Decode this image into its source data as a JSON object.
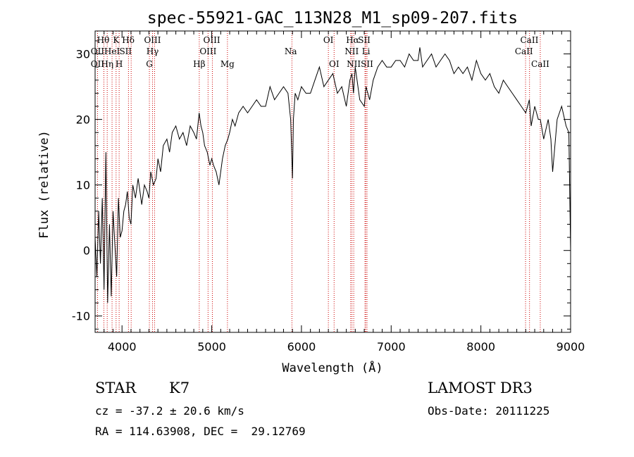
{
  "chart_data": {
    "type": "line",
    "title": "spec-55921-GAC_113N28_M1_sp09-207.fits",
    "xlabel": "Wavelength (Å)",
    "ylabel": "Flux (relative)",
    "xlim": [
      3700,
      9000
    ],
    "ylim": [
      -12.5,
      33.5
    ],
    "x_ticks": [
      4000,
      5000,
      6000,
      7000,
      8000,
      9000
    ],
    "y_ticks": [
      -10,
      0,
      10,
      20,
      30
    ],
    "line_color": "#000000",
    "marker_color": "#cc0000",
    "series": [
      {
        "name": "flux",
        "x": [
          3700,
          3720,
          3740,
          3760,
          3780,
          3800,
          3820,
          3840,
          3860,
          3880,
          3900,
          3920,
          3940,
          3960,
          3980,
          4000,
          4020,
          4040,
          4060,
          4080,
          4100,
          4120,
          4150,
          4180,
          4200,
          4220,
          4250,
          4280,
          4300,
          4320,
          4350,
          4380,
          4400,
          4430,
          4460,
          4500,
          4530,
          4560,
          4600,
          4640,
          4680,
          4720,
          4760,
          4800,
          4830,
          4860,
          4880,
          4900,
          4920,
          4950,
          4980,
          5000,
          5020,
          5050,
          5080,
          5120,
          5150,
          5180,
          5200,
          5230,
          5260,
          5300,
          5350,
          5400,
          5450,
          5500,
          5550,
          5600,
          5650,
          5700,
          5750,
          5800,
          5850,
          5880,
          5900,
          5910,
          5930,
          5960,
          6000,
          6050,
          6100,
          6150,
          6200,
          6250,
          6300,
          6350,
          6400,
          6450,
          6500,
          6540,
          6563,
          6580,
          6600,
          6650,
          6700,
          6720,
          6760,
          6800,
          6850,
          6900,
          6950,
          7000,
          7050,
          7100,
          7150,
          7200,
          7250,
          7300,
          7320,
          7350,
          7400,
          7450,
          7500,
          7550,
          7600,
          7650,
          7700,
          7750,
          7800,
          7850,
          7900,
          7950,
          8000,
          8050,
          8100,
          8150,
          8200,
          8250,
          8300,
          8350,
          8400,
          8450,
          8500,
          8540,
          8560,
          8600,
          8640,
          8662,
          8700,
          8750,
          8780,
          8800,
          8850,
          8900,
          8950,
          8980,
          9000
        ],
        "values": [
          2,
          -4,
          6,
          -2,
          8,
          -6,
          15,
          -8,
          4,
          -7,
          6,
          1,
          -4,
          8,
          2,
          3,
          6,
          7,
          9,
          5,
          4,
          10,
          8,
          11,
          9,
          7,
          10,
          9,
          8,
          12,
          10,
          11,
          14,
          12,
          16,
          17,
          15,
          18,
          19,
          17,
          18,
          16,
          19,
          18,
          17,
          21,
          19,
          18,
          16,
          15,
          13,
          14,
          13,
          12,
          10,
          14,
          16,
          17,
          18,
          20,
          19,
          21,
          22,
          21,
          22,
          23,
          22,
          22,
          25,
          23,
          24,
          25,
          24,
          20,
          11,
          20,
          24,
          23,
          25,
          24,
          24,
          26,
          28,
          25,
          26,
          27,
          24,
          25,
          22,
          26,
          27,
          24,
          28,
          23,
          22,
          25,
          23,
          26,
          28,
          29,
          28,
          28,
          29,
          29,
          28,
          30,
          29,
          29,
          31,
          28,
          29,
          30,
          28,
          29,
          30,
          29,
          27,
          28,
          27,
          28,
          26,
          29,
          27,
          26,
          27,
          25,
          24,
          26,
          25,
          24,
          23,
          22,
          21,
          23,
          19,
          22,
          20,
          20,
          17,
          20,
          17,
          12,
          20,
          22,
          19,
          18,
          0
        ]
      }
    ],
    "lines": [
      {
        "name": "Hθ",
        "x": 3798
      },
      {
        "name": "OII",
        "x": 3727
      },
      {
        "name": "Hη",
        "x": 3835
      },
      {
        "name": "K",
        "x": 3934
      },
      {
        "name": "HeI",
        "x": 3889
      },
      {
        "name": "H",
        "x": 3968
      },
      {
        "name": "Hδ",
        "x": 4102
      },
      {
        "name": "SII",
        "x": 4072
      },
      {
        "name": "OIII",
        "x": 4363
      },
      {
        "name": "Hγ",
        "x": 4340
      },
      {
        "name": "G",
        "x": 4305
      },
      {
        "name": "Hβ",
        "x": 4861
      },
      {
        "name": "OIII",
        "x": 4959
      },
      {
        "name": "OIII",
        "x": 5007
      },
      {
        "name": "Mg",
        "x": 5175
      },
      {
        "name": "Na",
        "x": 5894
      },
      {
        "name": "OI",
        "x": 6300
      },
      {
        "name": "OI",
        "x": 6364
      },
      {
        "name": "Hα",
        "x": 6563
      },
      {
        "name": "NII",
        "x": 6548
      },
      {
        "name": "NII",
        "x": 6583
      },
      {
        "name": "SII",
        "x": 6717
      },
      {
        "name": "SII",
        "x": 6731
      },
      {
        "name": "Li",
        "x": 6708
      },
      {
        "name": "CaII",
        "x": 8498
      },
      {
        "name": "CaII",
        "x": 8542
      },
      {
        "name": "CaII",
        "x": 8662
      }
    ],
    "labels": [
      {
        "text": "Hθ",
        "x": 3790,
        "row": 0
      },
      {
        "text": "K",
        "x": 3934,
        "row": 0
      },
      {
        "text": "Hδ",
        "x": 4070,
        "row": 0
      },
      {
        "text": "OIII",
        "x": 4340,
        "row": 0
      },
      {
        "text": "OIII",
        "x": 5000,
        "row": 0
      },
      {
        "text": "OI",
        "x": 6300,
        "row": 0
      },
      {
        "text": "Hα",
        "x": 6570,
        "row": 0
      },
      {
        "text": "SII",
        "x": 6700,
        "row": 0
      },
      {
        "text": "CaII",
        "x": 8540,
        "row": 0
      },
      {
        "text": "OII",
        "x": 3727,
        "row": 1
      },
      {
        "text": "HeI",
        "x": 3889,
        "row": 1
      },
      {
        "text": "SII",
        "x": 4040,
        "row": 1
      },
      {
        "text": "Hγ",
        "x": 4340,
        "row": 1
      },
      {
        "text": "OIII",
        "x": 4959,
        "row": 1
      },
      {
        "text": "Na",
        "x": 5880,
        "row": 1
      },
      {
        "text": "NII",
        "x": 6560,
        "row": 1
      },
      {
        "text": "Li",
        "x": 6720,
        "row": 1
      },
      {
        "text": "CaII",
        "x": 8480,
        "row": 1
      },
      {
        "text": "OII",
        "x": 3727,
        "row": 2
      },
      {
        "text": "Hη",
        "x": 3835,
        "row": 2
      },
      {
        "text": "H",
        "x": 3968,
        "row": 2
      },
      {
        "text": "G",
        "x": 4305,
        "row": 2
      },
      {
        "text": "Hβ",
        "x": 4861,
        "row": 2
      },
      {
        "text": "Mg",
        "x": 5175,
        "row": 2
      },
      {
        "text": "OI",
        "x": 6364,
        "row": 2
      },
      {
        "text": "NII",
        "x": 6583,
        "row": 2
      },
      {
        "text": "SII",
        "x": 6731,
        "row": 2
      },
      {
        "text": "CaII",
        "x": 8662,
        "row": 2
      }
    ]
  },
  "info": {
    "object_class": "STAR",
    "subclass": "K7",
    "survey": "LAMOST DR3",
    "redshift_line": "cz = -37.2 ± 20.6 km/s",
    "obs_date_line": "Obs-Date: 20111225",
    "coords_line": "RA = 114.63908, DEC =  29.12769"
  }
}
